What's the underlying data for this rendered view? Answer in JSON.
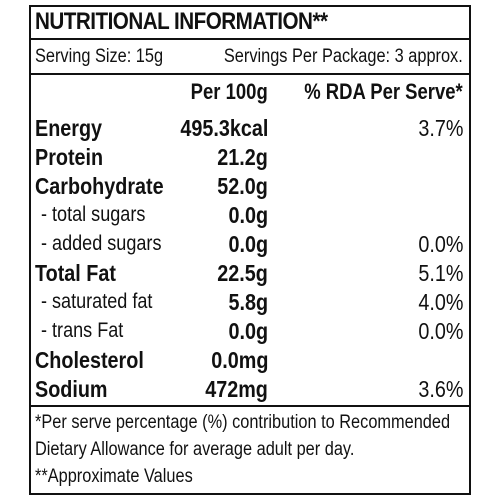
{
  "label": {
    "title": "NUTRITIONAL INFORMATION**",
    "serving_size": "Serving Size: 15g",
    "servings_per_package": "Servings Per Package: 3 approx.",
    "columns": {
      "per_100g": "Per 100g",
      "rda_per_serve": "% RDA Per Serve*"
    },
    "rows": [
      {
        "name": "Energy",
        "per_100g": "495.3kcal",
        "rda": "3.7%"
      },
      {
        "name": "Protein",
        "per_100g": "21.2g",
        "rda": ""
      },
      {
        "name": "Carbohydrate",
        "per_100g": "52.0g",
        "rda": ""
      },
      {
        "name": "- total sugars",
        "per_100g": "0.0g",
        "rda": ""
      },
      {
        "name": "- added sugars",
        "per_100g": "0.0g",
        "rda": "0.0%"
      },
      {
        "name": "Total Fat",
        "per_100g": "22.5g",
        "rda": "5.1%"
      },
      {
        "name": "- saturated fat",
        "per_100g": "5.8g",
        "rda": "4.0%"
      },
      {
        "name": "- trans Fat",
        "per_100g": "0.0g",
        "rda": "0.0%"
      },
      {
        "name": "Cholesterol",
        "per_100g": "0.0mg",
        "rda": ""
      },
      {
        "name": "Sodium",
        "per_100g": "472mg",
        "rda": "3.6%"
      }
    ],
    "footnotes": [
      "*Per serve percentage (%) contribution to Recommended",
      "Dietary Allowance for average adult per day.",
      "**Approximate Values"
    ]
  }
}
